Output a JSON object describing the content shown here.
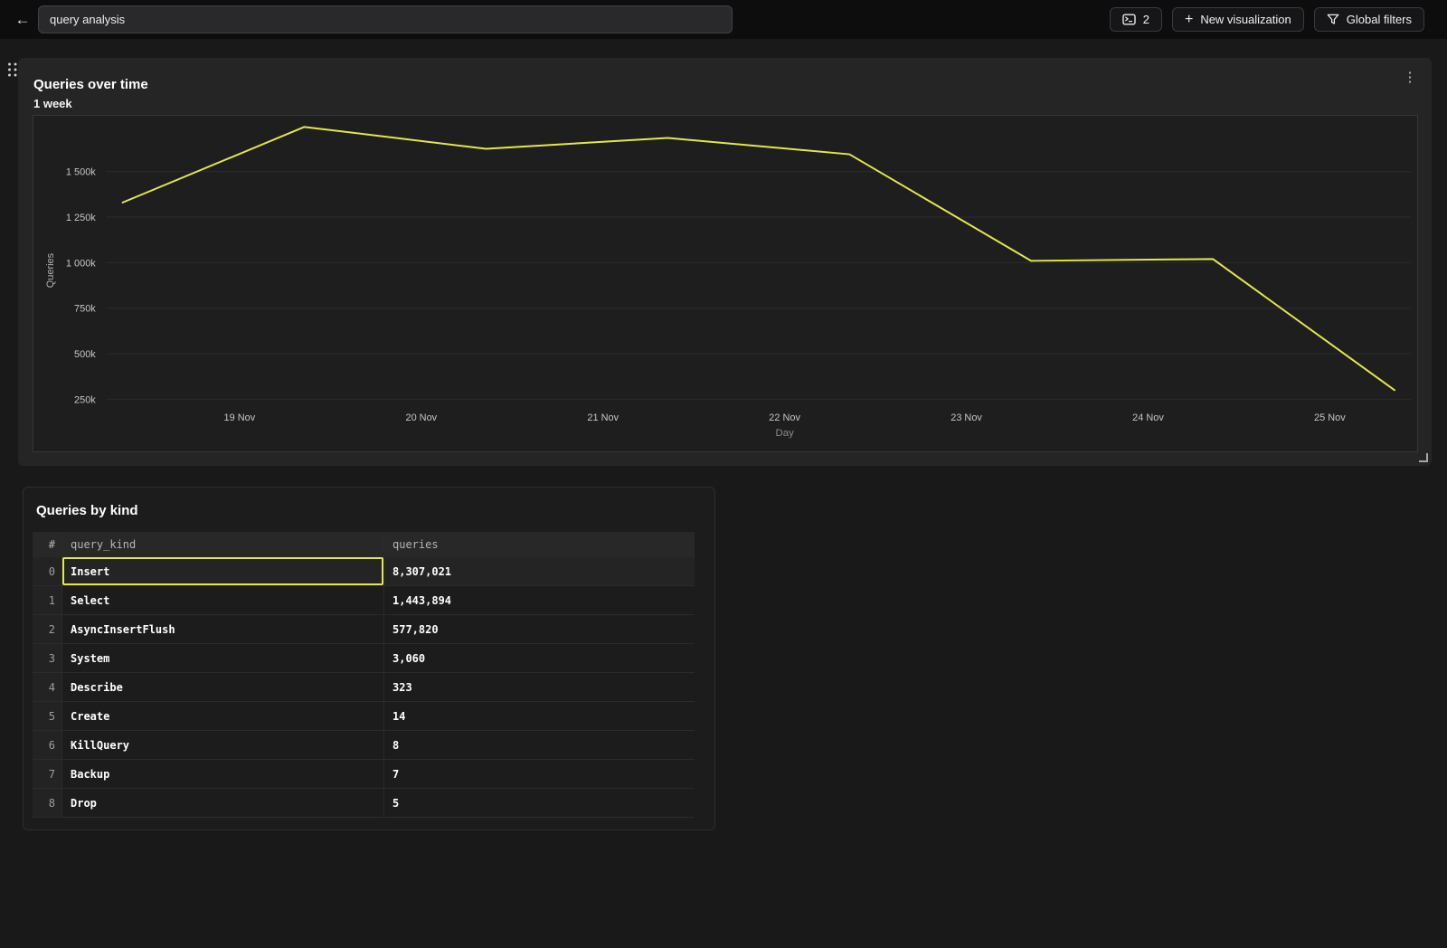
{
  "topbar": {
    "search": {
      "value": "query analysis"
    },
    "tab_count_button": {
      "count": "2"
    },
    "new_visualization_button": {
      "label": "New visualization"
    },
    "global_filters_button": {
      "label": "Global filters"
    },
    "kebab_glyph": "⋮",
    "back_glyph": "←",
    "plus_glyph": "+"
  },
  "chart_panel": {
    "title": "Queries over time",
    "subtitle": "1 week"
  },
  "chart_data": {
    "type": "line",
    "title": "Queries over time",
    "subtitle": "1 week",
    "xlabel": "Day",
    "ylabel": "Queries",
    "x_tick_labels": [
      "19 Nov",
      "20 Nov",
      "21 Nov",
      "22 Nov",
      "23 Nov",
      "24 Nov",
      "25 Nov"
    ],
    "y_ticks": [
      {
        "label": "1 500k",
        "value": 1500000
      },
      {
        "label": "1 250k",
        "value": 1250000
      },
      {
        "label": "1 000k",
        "value": 1000000
      },
      {
        "label": "750k",
        "value": 750000
      },
      {
        "label": "500k",
        "value": 500000
      },
      {
        "label": "250k",
        "value": 250000
      }
    ],
    "ylim": [
      150000,
      1820000
    ],
    "grid": "horizontal-only",
    "legend": "none",
    "series": [
      {
        "name": "Queries",
        "color": "#e2e74e",
        "points": [
          {
            "x": "18 Nov",
            "y": 1330000
          },
          {
            "x": "19 Nov",
            "y": 1745000
          },
          {
            "x": "20 Nov",
            "y": 1625000
          },
          {
            "x": "21 Nov",
            "y": 1685000
          },
          {
            "x": "22 Nov",
            "y": 1595000
          },
          {
            "x": "23 Nov",
            "y": 1010000
          },
          {
            "x": "24 Nov",
            "y": 1020000
          },
          {
            "x": "25 Nov",
            "y": 300000
          }
        ]
      }
    ]
  },
  "table_panel": {
    "title": "Queries by kind",
    "columns": [
      "#",
      "query_kind",
      "queries"
    ],
    "rows": [
      {
        "index": "0",
        "query_kind": "Insert",
        "queries": "8,307,021"
      },
      {
        "index": "1",
        "query_kind": "Select",
        "queries": "1,443,894"
      },
      {
        "index": "2",
        "query_kind": "AsyncInsertFlush",
        "queries": "577,820"
      },
      {
        "index": "3",
        "query_kind": "System",
        "queries": "3,060"
      },
      {
        "index": "4",
        "query_kind": "Describe",
        "queries": "323"
      },
      {
        "index": "5",
        "query_kind": "Create",
        "queries": "14"
      },
      {
        "index": "6",
        "query_kind": "KillQuery",
        "queries": "8"
      },
      {
        "index": "7",
        "query_kind": "Backup",
        "queries": "7"
      },
      {
        "index": "8",
        "query_kind": "Drop",
        "queries": "5"
      }
    ],
    "selected_cell": {
      "row": 0,
      "column": "query_kind"
    }
  },
  "colors": {
    "accent_line": "#e2e74e",
    "page_bg": "#191919",
    "topbar_bg": "#0d0d0e",
    "chart_panel_bg": "#252525",
    "plot_bg": "#1e1e1e"
  }
}
